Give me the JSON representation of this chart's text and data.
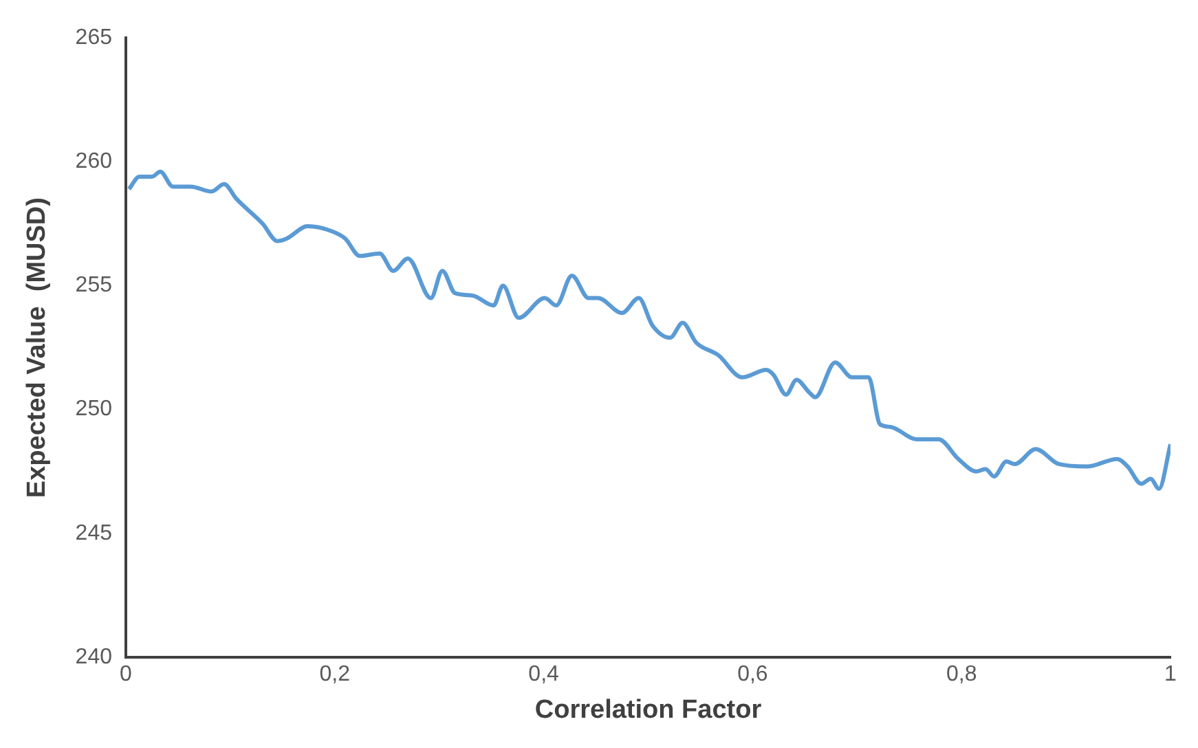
{
  "chart_data": {
    "type": "line",
    "xlabel": "Correlation Factor",
    "ylabel": "Expected Value  (MUSD)",
    "x": [
      0.003,
      0.013,
      0.025,
      0.033,
      0.045,
      0.062,
      0.082,
      0.094,
      0.106,
      0.131,
      0.145,
      0.154,
      0.174,
      0.197,
      0.21,
      0.224,
      0.243,
      0.256,
      0.27,
      0.292,
      0.303,
      0.315,
      0.332,
      0.352,
      0.361,
      0.376,
      0.401,
      0.412,
      0.427,
      0.443,
      0.452,
      0.475,
      0.491,
      0.504,
      0.521,
      0.533,
      0.546,
      0.567,
      0.59,
      0.613,
      0.62,
      0.632,
      0.642,
      0.654,
      0.66,
      0.679,
      0.695,
      0.711,
      0.722,
      0.732,
      0.757,
      0.778,
      0.797,
      0.814,
      0.823,
      0.831,
      0.843,
      0.851,
      0.871,
      0.893,
      0.92,
      0.949,
      0.959,
      0.972,
      0.981,
      0.989,
      1.0
    ],
    "series": [
      {
        "color": "#5b9bd5",
        "values": [
          258.9,
          259.4,
          259.4,
          259.6,
          259.0,
          259.0,
          258.8,
          259.1,
          258.5,
          257.5,
          256.8,
          256.9,
          257.4,
          257.2,
          256.9,
          256.2,
          256.3,
          255.6,
          256.1,
          254.5,
          255.6,
          254.7,
          254.6,
          254.2,
          255.0,
          253.7,
          254.5,
          254.2,
          255.4,
          254.5,
          254.5,
          253.9,
          254.5,
          253.4,
          252.9,
          253.5,
          252.7,
          252.2,
          251.3,
          251.6,
          251.4,
          250.6,
          251.2,
          250.7,
          250.5,
          251.9,
          251.3,
          251.3,
          249.4,
          249.3,
          248.8,
          248.8,
          248.0,
          247.5,
          247.6,
          247.3,
          247.9,
          247.8,
          248.4,
          247.8,
          247.7,
          248.0,
          247.7,
          247.0,
          247.2,
          246.8,
          248.6
        ]
      }
    ],
    "xlim": [
      0,
      1
    ],
    "xticks": [
      0,
      {
        "value": 0.2,
        "label": "0,2"
      },
      {
        "value": 0.4,
        "label": "0,4"
      },
      {
        "value": 0.6,
        "label": "0,6"
      },
      {
        "value": 0.8,
        "label": "0,8"
      },
      1
    ],
    "ylim": [
      240,
      265
    ],
    "yticks": [
      240,
      245,
      250,
      255,
      260,
      265
    ],
    "grid": false,
    "legend": false,
    "marker": "none",
    "line_style": "solid"
  }
}
